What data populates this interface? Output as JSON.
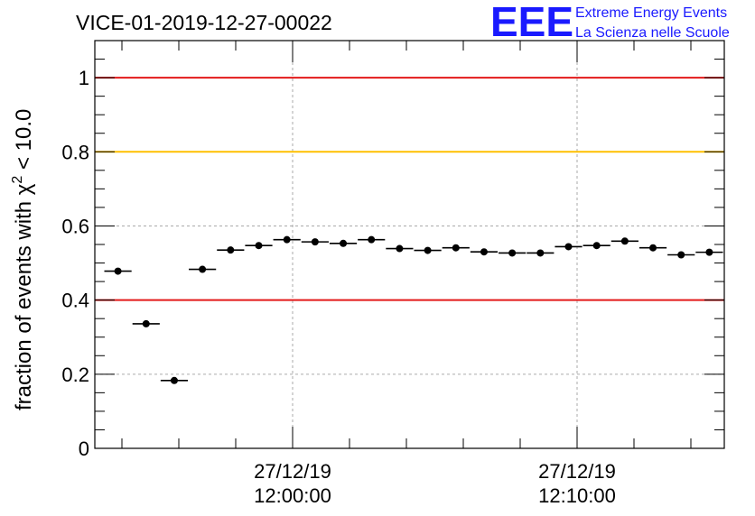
{
  "chart_data": {
    "type": "scatter",
    "title": "VICE-01-2019-12-27-00022",
    "ylabel_main": "fraction of events with χ",
    "ylabel_sup": "2",
    "ylabel_tail": " < 10.0",
    "ylim": [
      0,
      1.1
    ],
    "y_ticks": [
      "0",
      "0.2",
      "0.4",
      "0.6",
      "0.8",
      "1"
    ],
    "x_ticks": [
      {
        "date": "27/12/19",
        "time": "12:00:00"
      },
      {
        "date": "27/12/19",
        "time": "12:10:00"
      }
    ],
    "grid": true,
    "reference_lines": [
      {
        "y": 1.0,
        "color": "#e31a1a"
      },
      {
        "y": 0.8,
        "color": "#ffc000"
      },
      {
        "y": 0.4,
        "color": "#e31a1a"
      }
    ],
    "points": [
      0.478,
      0.336,
      0.183,
      0.483,
      0.535,
      0.547,
      0.563,
      0.557,
      0.553,
      0.563,
      0.539,
      0.534,
      0.541,
      0.53,
      0.527,
      0.527,
      0.544,
      0.547,
      0.559,
      0.541,
      0.522,
      0.529
    ],
    "point_color": "#000000"
  },
  "logo": {
    "mark": "EEE",
    "line1": "Extreme Energy Events",
    "line2": "La Scienza nelle Scuole"
  }
}
